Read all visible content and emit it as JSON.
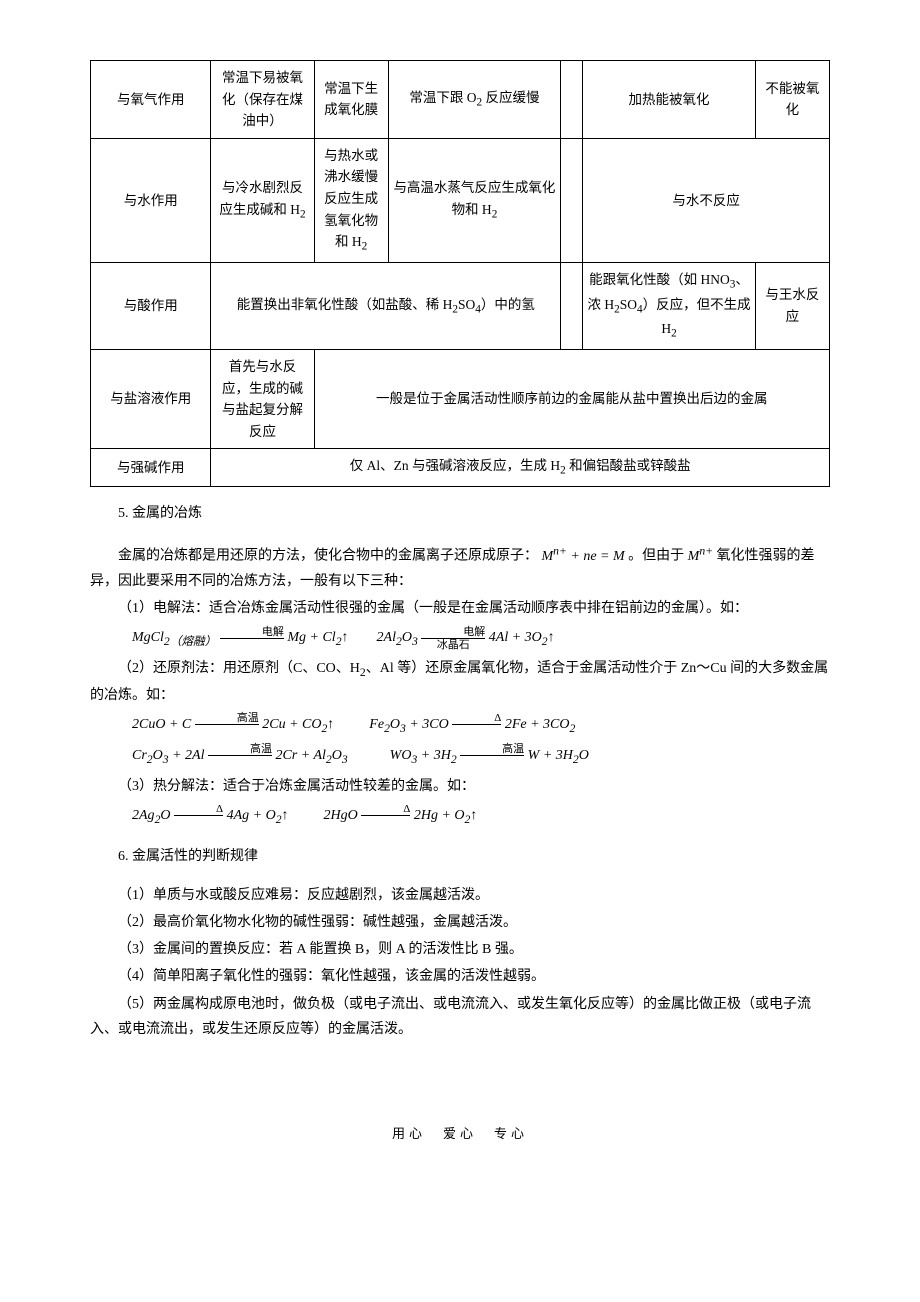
{
  "table": {
    "rows": [
      {
        "head": "与氧气作用",
        "cells": [
          "常温下易被氧化（保存在煤油中）",
          "常温下生成氧化膜",
          "常温下跟 O<sub>2</sub> 反应缓慢",
          "",
          "加热能被氧化",
          "不能被氧化"
        ],
        "spans": [
          1,
          1,
          1,
          1,
          1,
          1
        ]
      },
      {
        "head": "与水作用",
        "cells": [
          "与冷水剧烈反应生成碱和 H<sub>2</sub>",
          "与热水或沸水缓慢反应生成氢氧化物和 H<sub>2</sub>",
          "与高温水蒸气反应生成氧化物和 H<sub>2</sub>",
          "",
          "与水不反应"
        ],
        "spans": [
          1,
          1,
          1,
          1,
          2
        ]
      },
      {
        "head": "与酸作用",
        "cells": [
          "能置换出非氧化性酸（如盐酸、稀 H<sub>2</sub>SO<sub>4</sub>）中的氢",
          "",
          "能跟氧化性酸（如 HNO<sub>3</sub>、浓 H<sub>2</sub>SO<sub>4</sub>）反应，但不生成 H<sub>2</sub>",
          "与王水反应"
        ],
        "spans": [
          3,
          1,
          1,
          1
        ]
      },
      {
        "head": "与盐溶液作用",
        "cells": [
          "首先与水反应，生成的碱与盐起复分解反应",
          "一般是位于金属活动性顺序前边的金属能从盐中置换出后边的金属"
        ],
        "spans": [
          1,
          5
        ]
      },
      {
        "head": "与强碱作用",
        "cells": [
          "仅 Al、Zn 与强碱溶液反应，生成 H<sub>2</sub> 和偏铝酸盐或锌酸盐"
        ],
        "spans": [
          6
        ]
      }
    ]
  },
  "s5": {
    "title": "5. 金属的冶炼",
    "p1a": "金属的冶炼都是用还原的方法，使化合物中的金属离子还原成原子：",
    "eq0": "M<sup>n+</sup> + ne = M",
    "p1b": "。但由于",
    "eq0b": "M<sup>n+</sup>",
    "p1c": "氧化性强弱的差异，因此要采用不同的冶炼方法，一般有以下三种：",
    "m1": "（1）电解法：适合冶炼金属活动性很强的金属（一般是在金属活动顺序表中排在铝前边的金属）。如：",
    "eq1_left": "MgCl<sub>2（熔融）</sub>",
    "cond1": "电解",
    "eq1_right": "Mg + Cl<sub>2</sub>↑",
    "eq2_left": "2Al<sub>2</sub>O<sub>3</sub>",
    "cond2_top": "电解",
    "cond2_bot": "冰晶石",
    "eq2_right": "4Al + 3O<sub>2</sub>↑",
    "m2": "（2）还原剂法：用还原剂（C、CO、H<sub>2</sub>、Al 等）还原金属氧化物，适合于金属活动性介于 Zn～Cu 间的大多数金属的冶炼。如：",
    "eq3_left": "2CuO + C",
    "cond3": "高温",
    "eq3_right": "2Cu + CO<sub>2</sub>↑",
    "eq4_left": "Fe<sub>2</sub>O<sub>3</sub> + 3CO",
    "cond4": "Δ",
    "eq4_right": "2Fe + 3CO<sub>2</sub>",
    "eq5_left": "Cr<sub>2</sub>O<sub>3</sub> + 2Al",
    "cond5": "高温",
    "eq5_right": "2Cr + Al<sub>2</sub>O<sub>3</sub>",
    "eq6_left": "WO<sub>3</sub> + 3H<sub>2</sub>",
    "cond6": "高温",
    "eq6_right": "W + 3H<sub>2</sub>O",
    "m3": "（3）热分解法：适合于冶炼金属活动性较差的金属。如：",
    "eq7_left": "2Ag<sub>2</sub>O",
    "cond7": "Δ",
    "eq7_right": "4Ag + O<sub>2</sub>↑",
    "eq8_left": "2HgO",
    "cond8": "Δ",
    "eq8_right": "2Hg + O<sub>2</sub>↑"
  },
  "s6": {
    "title": "6. 金属活性的判断规律",
    "items": [
      "（1）单质与水或酸反应难易：反应越剧烈，该金属越活泼。",
      "（2）最高价氧化物水化物的碱性强弱：碱性越强，金属越活泼。",
      "（3）金属间的置换反应：若 A 能置换 B，则 A 的活泼性比 B 强。",
      "（4）简单阳离子氧化性的强弱：氧化性越强，该金属的活泼性越弱。",
      "（5）两金属构成原电池时，做负极（或电子流出、或电流流入、或发生氧化反应等）的金属比做正极（或电子流入、或电流流出，或发生还原反应等）的金属活泼。"
    ]
  },
  "footer": "用心　爱心　专心"
}
